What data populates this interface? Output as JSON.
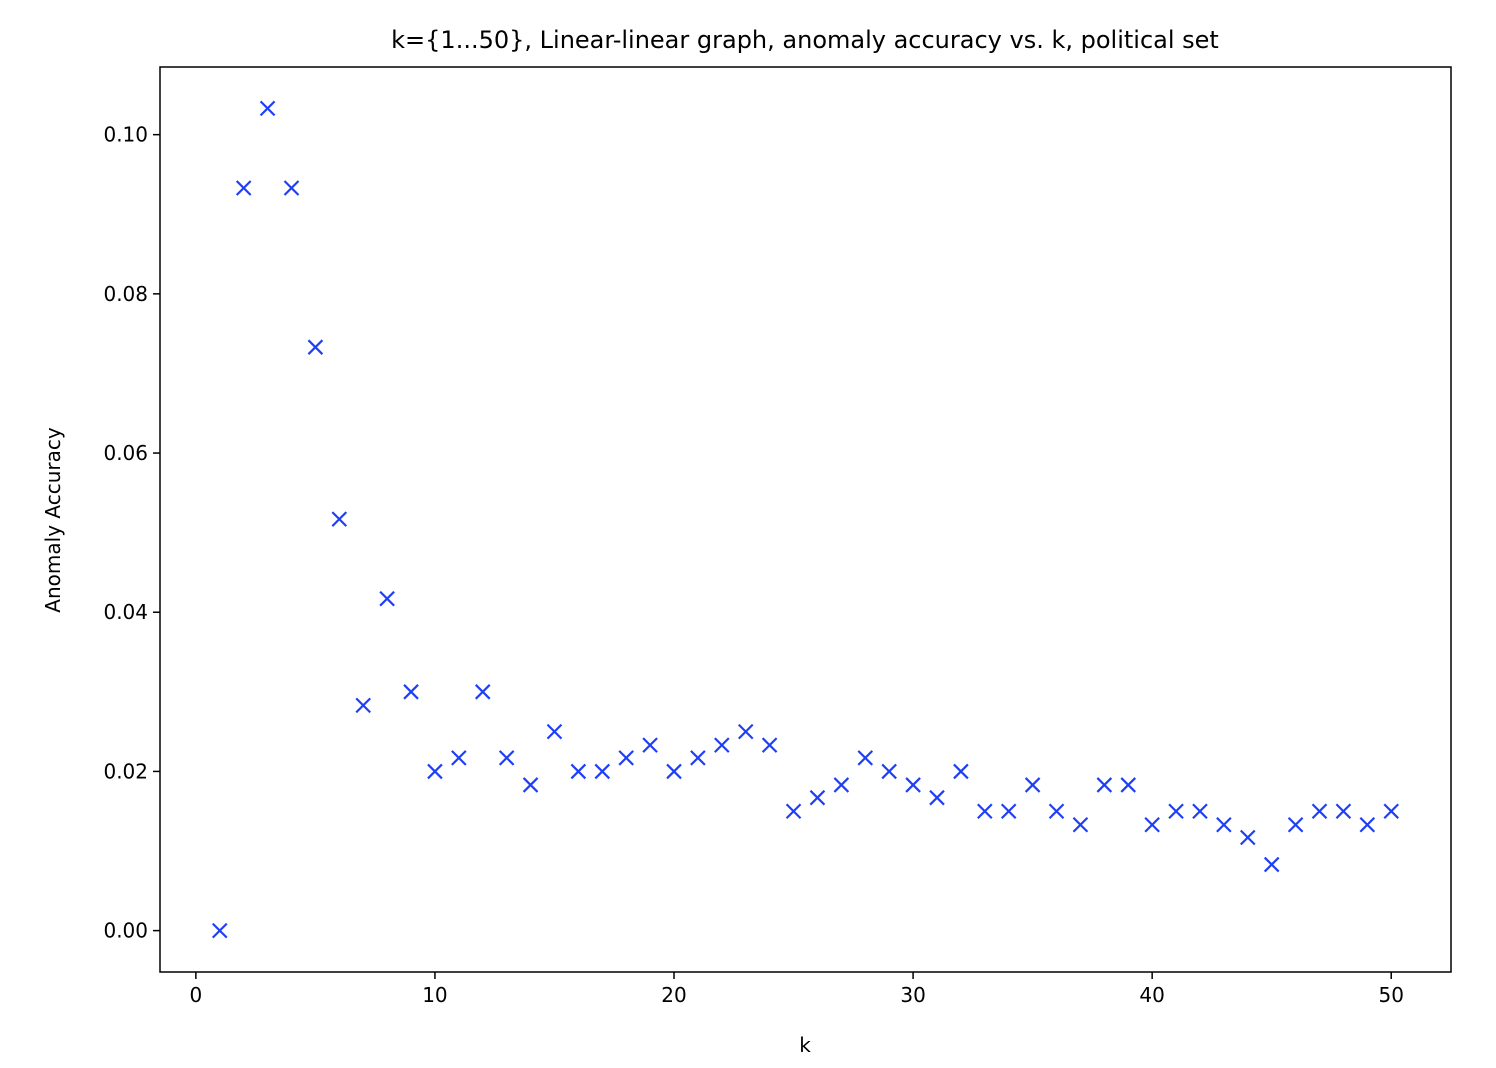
{
  "chart_data": {
    "type": "scatter",
    "title": "k={1...50}, Linear-linear graph, anomaly accuracy vs. k, political set",
    "xlabel": "k",
    "ylabel": "Anomaly Accuracy",
    "xlim": [
      -1.5,
      52.5
    ],
    "ylim": [
      -0.0052,
      0.1085
    ],
    "xticks": [
      0,
      10,
      20,
      30,
      40,
      50
    ],
    "xtick_labels": [
      "0",
      "10",
      "20",
      "30",
      "40",
      "50"
    ],
    "yticks": [
      0.0,
      0.02,
      0.04,
      0.06,
      0.08,
      0.1
    ],
    "ytick_labels": [
      "0.00",
      "0.02",
      "0.04",
      "0.06",
      "0.08",
      "0.10"
    ],
    "grid": false,
    "marker": "x",
    "color": "#1f3ff5",
    "x": [
      1,
      2,
      3,
      4,
      5,
      6,
      7,
      8,
      9,
      10,
      11,
      12,
      13,
      14,
      15,
      16,
      17,
      18,
      19,
      20,
      21,
      22,
      23,
      24,
      25,
      26,
      27,
      28,
      29,
      30,
      31,
      32,
      33,
      34,
      35,
      36,
      37,
      38,
      39,
      40,
      41,
      42,
      43,
      44,
      45,
      46,
      47,
      48,
      49,
      50
    ],
    "y": [
      0.0,
      0.0933,
      0.1033,
      0.0933,
      0.0733,
      0.0517,
      0.0283,
      0.0417,
      0.03,
      0.02,
      0.0217,
      0.03,
      0.0217,
      0.0183,
      0.025,
      0.02,
      0.02,
      0.0217,
      0.0233,
      0.02,
      0.0217,
      0.0233,
      0.025,
      0.0233,
      0.015,
      0.0167,
      0.0183,
      0.0217,
      0.02,
      0.0183,
      0.0167,
      0.02,
      0.015,
      0.015,
      0.0183,
      0.015,
      0.0133,
      0.0183,
      0.0183,
      0.0133,
      0.015,
      0.015,
      0.0133,
      0.0117,
      0.0083,
      0.0133,
      0.015,
      0.015,
      0.0133,
      0.015
    ]
  }
}
